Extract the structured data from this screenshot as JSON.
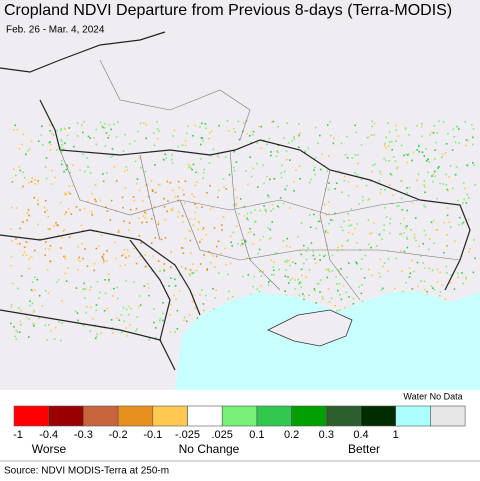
{
  "header": {
    "title": "Cropland NDVI Departure from Previous 8-days (Terra-MODIS)",
    "subtitle": "Feb. 26 - Mar. 4, 2024"
  },
  "legend": {
    "header": "Water No Data",
    "colors": [
      "#ff0000",
      "#9b0000",
      "#c8643c",
      "#e8901e",
      "#ffc850",
      "#ffffff",
      "#78f078",
      "#32c850",
      "#00a000",
      "#2d5f2d",
      "#002d00",
      "#aaffff",
      "#e6e6e6"
    ],
    "ticks": [
      "-1",
      "-0.4",
      "-0.3",
      "-0.2",
      "-0.1",
      "-.025",
      ".025",
      "0.1",
      "0.2",
      "0.3",
      "0.4",
      "1"
    ],
    "descriptors": [
      "Worse",
      "No Change",
      "Better"
    ]
  },
  "footer": {
    "source": "Source: NDVI MODIS-Terra at 250-m"
  }
}
